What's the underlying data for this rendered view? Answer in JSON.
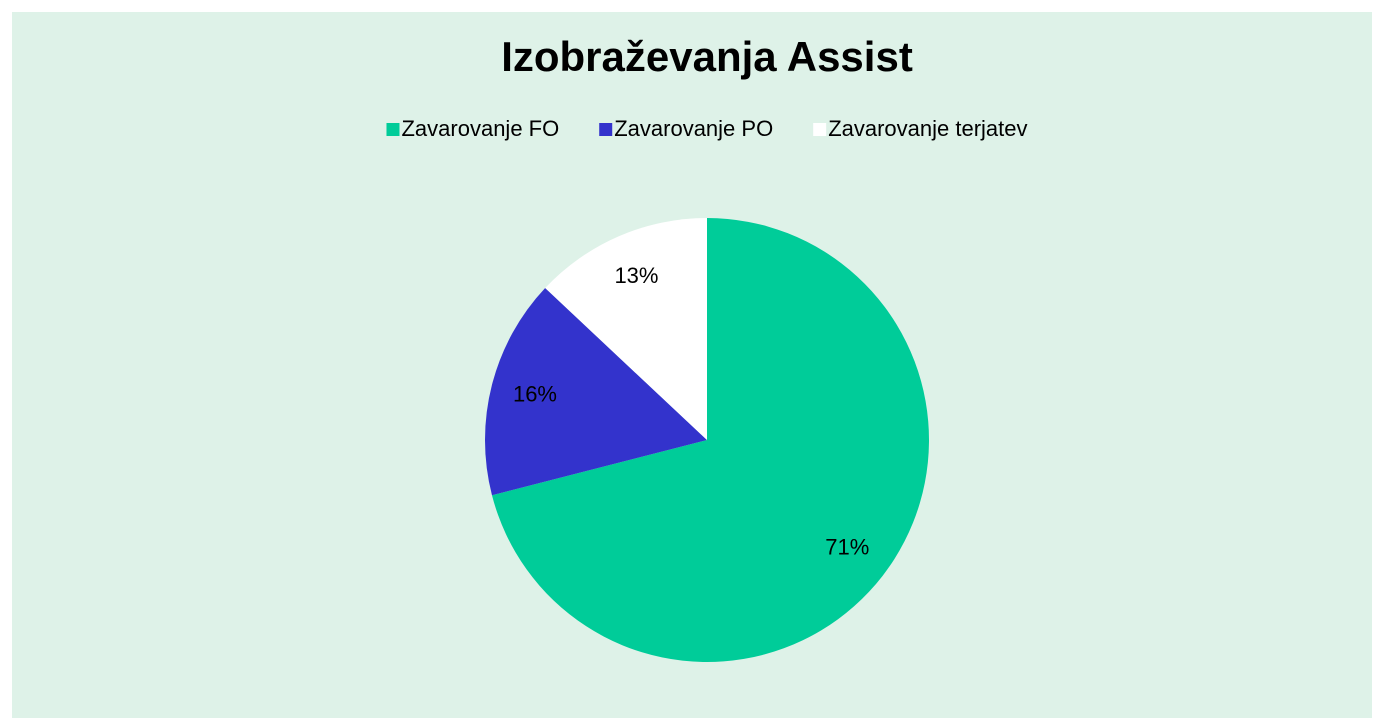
{
  "chart_data": {
    "type": "pie",
    "title": "Izobraževanja Assist",
    "categories": [
      "Zavarovanje FO",
      "Zavarovanje PO",
      "Zavarovanje terjatev"
    ],
    "values": [
      71,
      16,
      13
    ],
    "value_labels": [
      "71%",
      "16%",
      "13%"
    ],
    "colors": [
      "#00cc99",
      "#3333cc",
      "#ffffff"
    ],
    "legend": "top"
  }
}
